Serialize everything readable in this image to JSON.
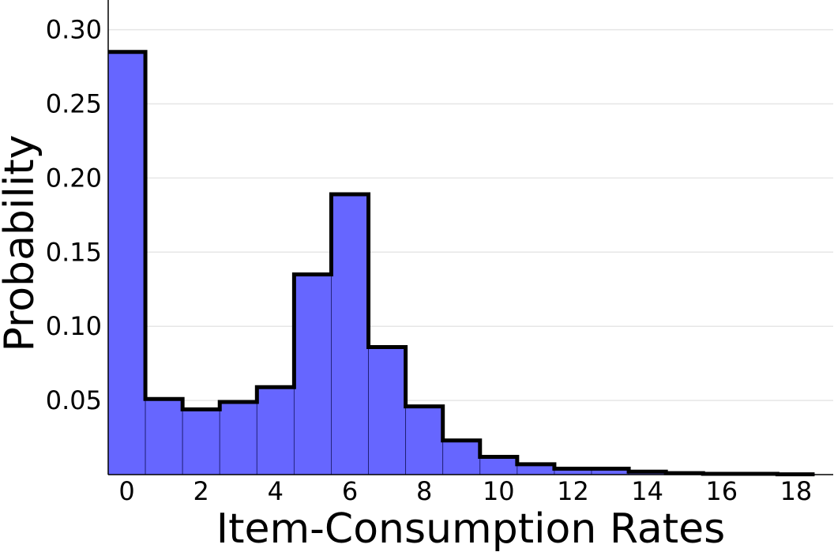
{
  "chart_data": {
    "type": "bar",
    "title": "",
    "xlabel": "Item-Consumption Rates",
    "ylabel": "Probability",
    "categories": [
      "0",
      "1",
      "2",
      "3",
      "4",
      "5",
      "6",
      "7",
      "8",
      "9",
      "10",
      "11",
      "12",
      "13",
      "14",
      "15",
      "16",
      "17",
      "18"
    ],
    "values": [
      0.285,
      0.051,
      0.044,
      0.049,
      0.059,
      0.135,
      0.189,
      0.086,
      0.046,
      0.023,
      0.012,
      0.007,
      0.004,
      0.004,
      0.002,
      0.001,
      0.0005,
      0.0005,
      0.0002
    ],
    "xlim": [
      -0.5,
      19
    ],
    "ylim": [
      0,
      0.32
    ],
    "xticks": [
      0,
      2,
      4,
      6,
      8,
      10,
      12,
      14,
      16,
      18
    ],
    "xtick_labels": [
      "0",
      "2",
      "4",
      "6",
      "8",
      "10",
      "12",
      "14",
      "16",
      "18"
    ],
    "yticks": [
      0.05,
      0.1,
      0.15,
      0.2,
      0.25,
      0.3
    ],
    "ytick_labels": [
      "0.05",
      "0.10",
      "0.15",
      "0.20",
      "0.25",
      "0.30"
    ],
    "grid": true,
    "bar_color": "#6666ff",
    "outline_color": "#000000",
    "grid_color": "#e6e6e6"
  }
}
